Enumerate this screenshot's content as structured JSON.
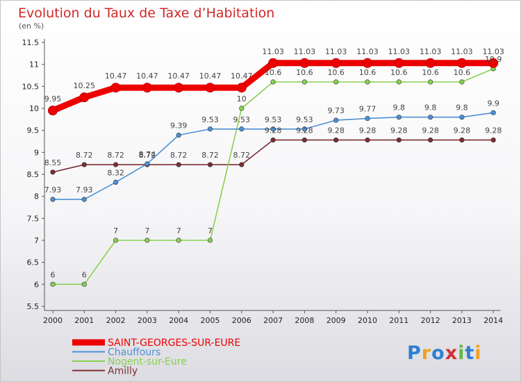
{
  "chart_data": {
    "type": "line",
    "title": "Evolution du Taux de Taxe d’Habitation",
    "subtitle": "(en %)",
    "x": [
      "2000",
      "2001",
      "2002",
      "2003",
      "2004",
      "2005",
      "2006",
      "2007",
      "2008",
      "2009",
      "2010",
      "2011",
      "2012",
      "2013",
      "2014"
    ],
    "ylim": [
      5.5,
      11.5
    ],
    "yticks": [
      "5.5",
      "6",
      "6.5",
      "7",
      "7.5",
      "8",
      "8.5",
      "9",
      "9.5",
      "10",
      "10.5",
      "11",
      "11.5"
    ],
    "grid": false,
    "legend_position": "bottom-left",
    "series": [
      {
        "name": "SAINT-GEORGES-SUR-EURE",
        "color": "#ee0000",
        "values": [
          9.95,
          10.25,
          10.47,
          10.47,
          10.47,
          10.47,
          10.47,
          11.03,
          11.03,
          11.03,
          11.03,
          11.03,
          11.03,
          11.03,
          11.03
        ],
        "labels": [
          "9.95",
          "10.25",
          "10.47",
          "10.47",
          "10.47",
          "10.47",
          "10.47",
          "11.03",
          "11.03",
          "11.03",
          "11.03",
          "11.03",
          "11.03",
          "11.03",
          "11.03"
        ]
      },
      {
        "name": "Chauffours",
        "color": "#4d90d4",
        "values": [
          7.93,
          7.93,
          8.32,
          8.74,
          9.39,
          9.53,
          9.53,
          9.53,
          9.53,
          9.73,
          9.77,
          9.8,
          9.8,
          9.8,
          9.9
        ],
        "labels": [
          "7.93",
          "7.93",
          "8.32",
          "8.74",
          "9.39",
          "9.53",
          "9.53",
          "9.53",
          "9.53",
          "9.73",
          "9.77",
          "9.8",
          "9.8",
          "9.8",
          "9.9"
        ]
      },
      {
        "name": "Nogent-sur-Eure",
        "color": "#88d050",
        "values": [
          6,
          6,
          7,
          7,
          7,
          7,
          10,
          10.6,
          10.6,
          10.6,
          10.6,
          10.6,
          10.6,
          10.6,
          10.9
        ],
        "labels": [
          "6",
          "6",
          "7",
          "7",
          "7",
          "7",
          "10",
          "10.6",
          "10.6",
          "10.6",
          "10.6",
          "10.6",
          "10.6",
          "10.6",
          "10.9"
        ]
      },
      {
        "name": "Amilly",
        "color": "#7a2e32",
        "values": [
          8.55,
          8.72,
          8.72,
          8.72,
          8.72,
          8.72,
          8.72,
          9.28,
          9.28,
          9.28,
          9.28,
          9.28,
          9.28,
          9.28,
          9.28
        ],
        "labels": [
          "8.55",
          "8.72",
          "8.72",
          "8.72",
          "8.72",
          "8.72",
          "8.72",
          "9.28",
          "9.28",
          "9.28",
          "9.28",
          "9.28",
          "9.28",
          "9.28",
          "9.28"
        ]
      }
    ]
  },
  "logo": {
    "letters": [
      "P",
      "r",
      "o",
      "x",
      "i",
      "t",
      "i"
    ],
    "colors": [
      "#2e7fd0",
      "#f0a020",
      "#2e7fd0",
      "#d03030",
      "#68b840",
      "#2e7fd0",
      "#f0a020"
    ]
  }
}
